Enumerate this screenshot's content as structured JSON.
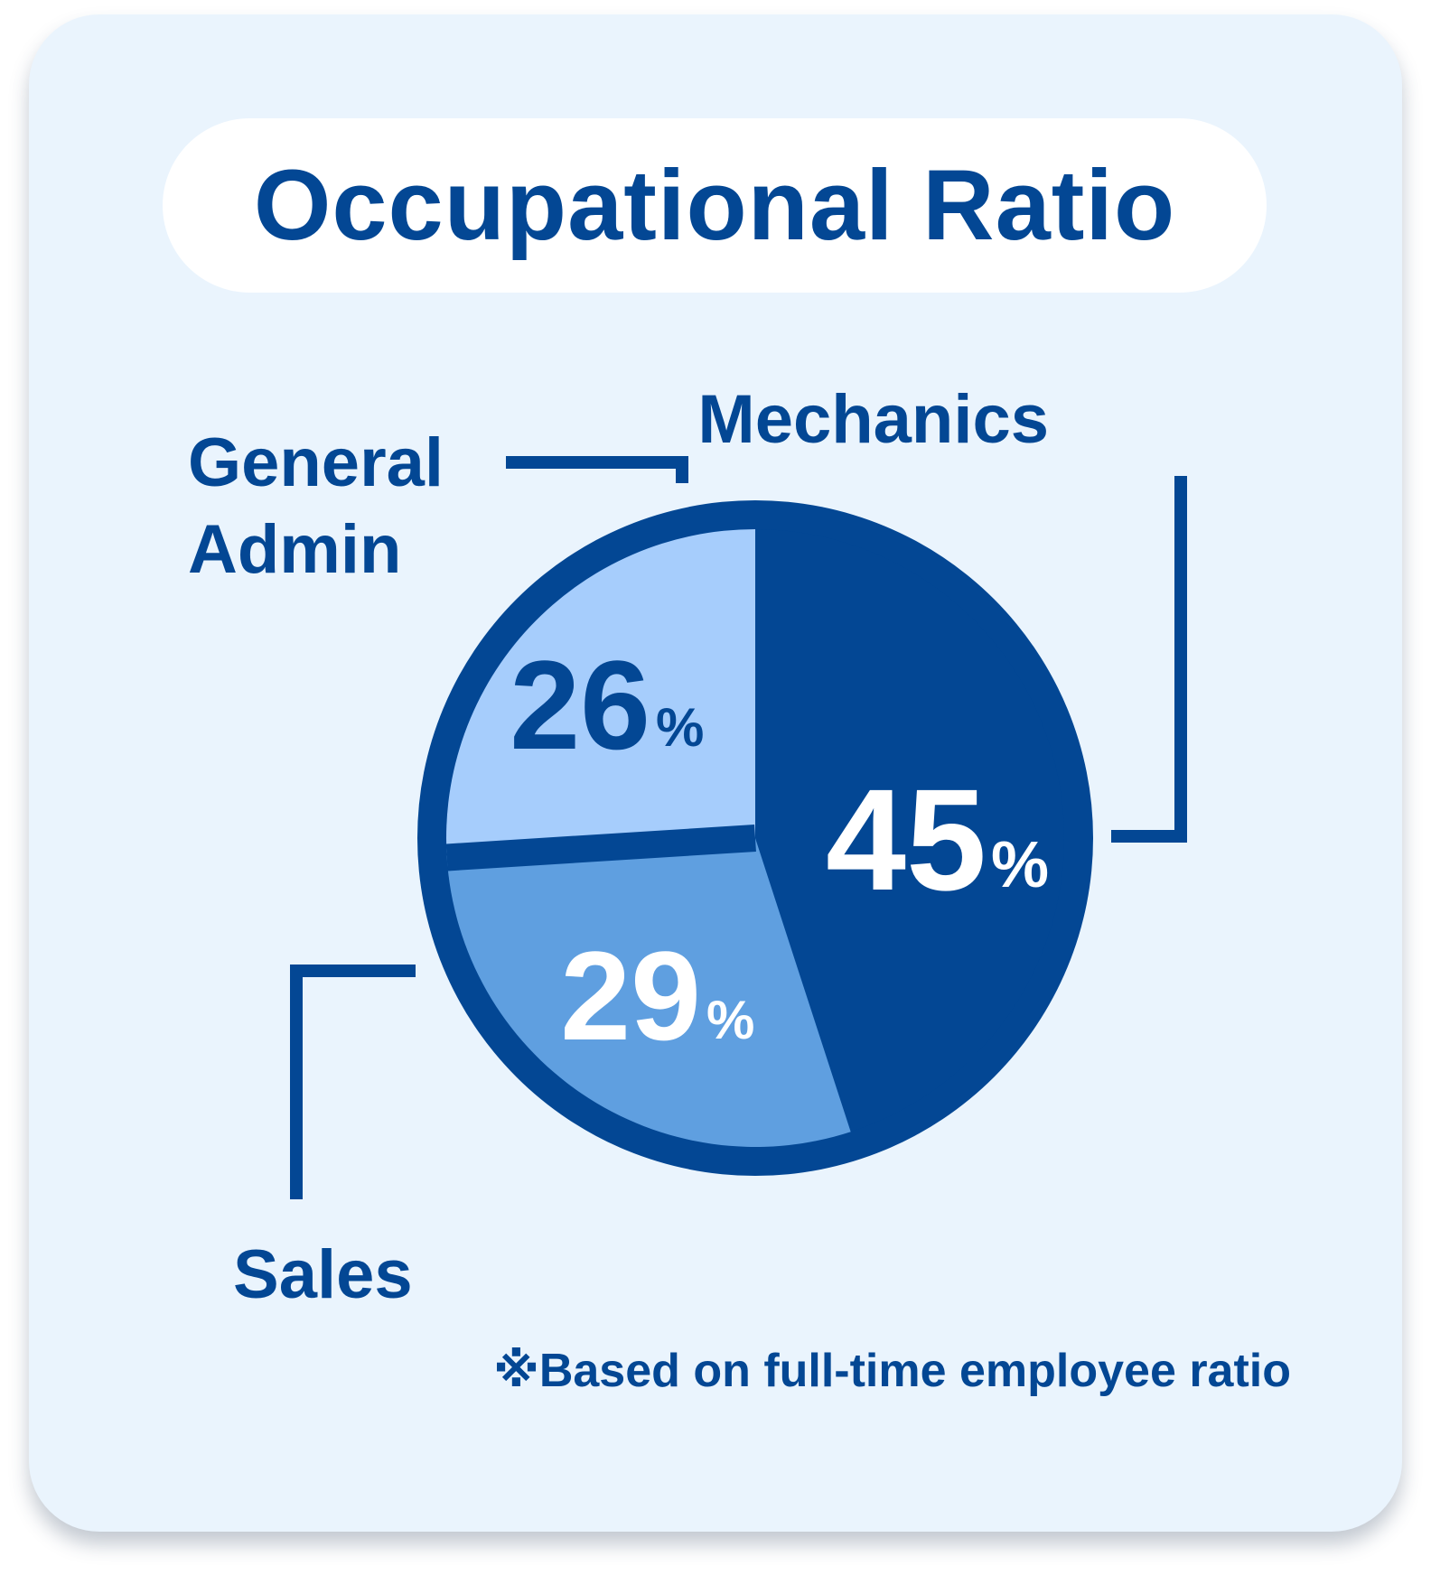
{
  "title": "Occupational Ratio",
  "note": "※Based on full-time employee ratio",
  "colors": {
    "card_background": "#eaf4fd",
    "navy": "#034794",
    "medium_blue": "#5f9fe0",
    "light_blue": "#a6cdfc"
  },
  "chart_data": {
    "type": "pie",
    "title": "Occupational Ratio",
    "unit": "%",
    "slices": [
      {
        "category": "Mechanics",
        "value": 45,
        "value_label": "45",
        "color": "#034794",
        "label_color": "#ffffff"
      },
      {
        "category": "Sales",
        "value": 29,
        "value_label": "29",
        "color": "#5f9fe0",
        "label_color": "#ffffff"
      },
      {
        "category": "General Admin",
        "category_lines": [
          "General",
          "Admin"
        ],
        "value": 26,
        "value_label": "26",
        "color": "#a6cdfc",
        "label_color": "#034794"
      }
    ],
    "legend": "none",
    "annotation": "※Based on full-time employee ratio"
  }
}
